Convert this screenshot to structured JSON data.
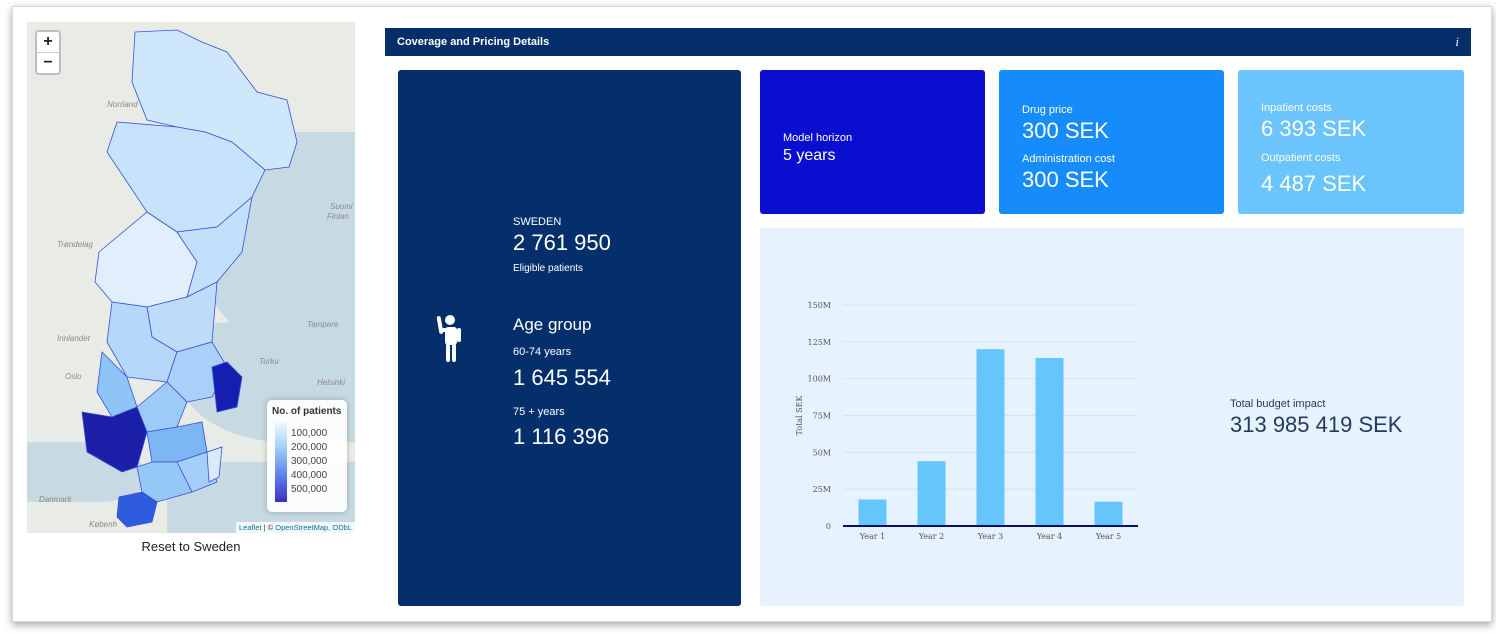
{
  "map": {
    "zoom_in": "+",
    "zoom_out": "−",
    "labels": {
      "norrland": "Norrland",
      "trondelag": "Trøndelag",
      "innlandet": "Innlandet",
      "oslo": "Oslo",
      "suomi": "Suomi",
      "finland": "Finlan",
      "tampere": "Tampere",
      "turku": "Turku",
      "helsinki": "Helsinki",
      "danmark": "Danmark",
      "kobenhavn": "Københ"
    },
    "legend": {
      "title": "No. of patients",
      "values": [
        "100,000",
        "200,000",
        "300,000",
        "400,000",
        "500,000"
      ]
    },
    "attribution": {
      "leaflet": "Leaflet",
      "sep": " | © ",
      "osm": "OpenStreetMap, ODbL"
    },
    "reset_label": "Reset to Sweden"
  },
  "header": {
    "title": "Coverage and Pricing Details",
    "info": "i"
  },
  "population": {
    "country": "SWEDEN",
    "total": "2 761 950",
    "total_caption": "Eligible patients",
    "age_group_title": "Age group",
    "groups": [
      {
        "label": "60-74 years",
        "value": "1 645 554"
      },
      {
        "label": "75 + years",
        "value": "1 116 396"
      }
    ]
  },
  "model": {
    "label": "Model horizon",
    "value": "5 years"
  },
  "drug": {
    "price_label": "Drug price",
    "price_value": "300 SEK",
    "admin_label": "Administration cost",
    "admin_value": "300 SEK"
  },
  "costs": {
    "inpatient_label": "Inpatient costs",
    "inpatient_value": "6 393 SEK",
    "outpatient_label": "Outpatient costs",
    "outpatient_value": "4 487 SEK"
  },
  "budget": {
    "label": "Total budget impact",
    "value": "313 985 419 SEK"
  },
  "colors": {
    "navy": "#052f6b",
    "blue": "#0a0fcf",
    "mid_blue": "#168cfc",
    "light_blue": "#6bc4fb",
    "bar": "#66c5fb",
    "chart_bg": "#e6f2fd"
  },
  "chart_data": {
    "type": "bar",
    "categories": [
      "Year 1",
      "Year 2",
      "Year 3",
      "Year 4",
      "Year 5"
    ],
    "values": [
      18000000,
      44000000,
      120000000,
      114000000,
      16500000
    ],
    "ylabel": "Total SEK",
    "xlabel": "",
    "ylim": [
      0,
      150000000
    ],
    "yticks": [
      0,
      25000000,
      50000000,
      75000000,
      100000000,
      125000000,
      150000000
    ],
    "ytick_labels": [
      "0",
      "25M",
      "50M",
      "75M",
      "100M",
      "125M",
      "150M"
    ],
    "grid": true
  }
}
